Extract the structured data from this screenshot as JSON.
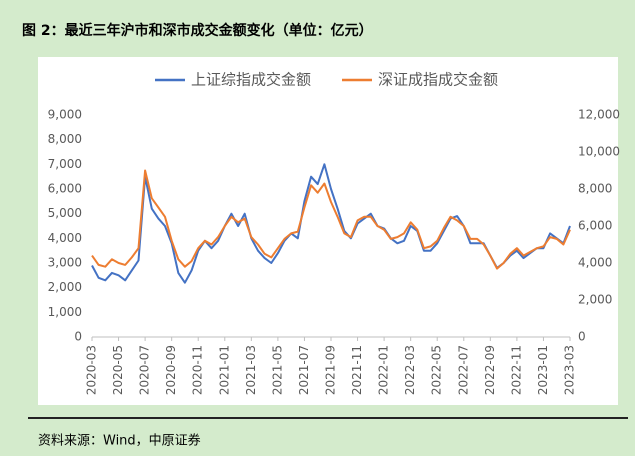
{
  "title": "图 2：最近三年沪市和深市成交金额变化（单位：亿元）",
  "source": "资料来源：Wind，中原证券",
  "chart_data": {
    "type": "line",
    "categories": [
      "2020-03",
      null,
      null,
      null,
      "2020-05",
      null,
      null,
      null,
      "2020-07",
      null,
      null,
      null,
      "2020-09",
      null,
      null,
      null,
      "2020-11",
      null,
      null,
      null,
      "2021-01",
      null,
      null,
      null,
      "2021-03",
      null,
      null,
      null,
      "2021-05",
      null,
      null,
      null,
      "2021-07",
      null,
      null,
      null,
      "2021-09",
      null,
      null,
      null,
      "2021-11",
      null,
      null,
      null,
      "2022-01",
      null,
      null,
      null,
      "2022-03",
      null,
      null,
      null,
      "2022-05",
      null,
      null,
      null,
      "2022-07",
      null,
      null,
      null,
      "2022-09",
      null,
      null,
      null,
      "2022-11",
      null,
      null,
      null,
      "2023-01",
      null,
      null,
      null,
      "2023-03"
    ],
    "series": [
      {
        "name": "上证综指成交金额",
        "color": "#4472c4",
        "axis": "y",
        "values": [
          2900,
          2400,
          2300,
          2600,
          2500,
          2300,
          2700,
          3100,
          6500,
          5200,
          4800,
          4500,
          3800,
          2600,
          2200,
          2700,
          3500,
          3900,
          3600,
          3900,
          4500,
          5000,
          4500,
          5000,
          4000,
          3500,
          3200,
          3000,
          3400,
          3900,
          4200,
          4000,
          5500,
          6500,
          6200,
          7000,
          6000,
          5200,
          4300,
          4000,
          4600,
          4800,
          5000,
          4500,
          4400,
          4000,
          3800,
          3900,
          4500,
          4300,
          3500,
          3500,
          3800,
          4300,
          4800,
          4900,
          4500,
          3800,
          3800,
          3800,
          3300,
          2800,
          3000,
          3300,
          3500,
          3200,
          3400,
          3600,
          3600,
          4200,
          4000,
          3800,
          4500
        ]
      },
      {
        "name": "深证成指成交金额",
        "color": "#ed7d31",
        "axis": "y2",
        "values": [
          4400,
          3900,
          3800,
          4200,
          4000,
          3900,
          4300,
          4800,
          9000,
          7500,
          7000,
          6500,
          5200,
          4200,
          3800,
          4100,
          4800,
          5200,
          5000,
          5400,
          6000,
          6500,
          6200,
          6400,
          5400,
          5000,
          4500,
          4300,
          4800,
          5300,
          5600,
          5700,
          7000,
          8200,
          7800,
          8300,
          7300,
          6500,
          5600,
          5400,
          6300,
          6500,
          6500,
          6000,
          5800,
          5300,
          5400,
          5600,
          6200,
          5800,
          4800,
          4900,
          5200,
          5900,
          6500,
          6300,
          6000,
          5300,
          5300,
          5000,
          4400,
          3700,
          4000,
          4500,
          4800,
          4400,
          4600,
          4800,
          4900,
          5400,
          5300,
          5000,
          5800
        ]
      }
    ],
    "ylim": [
      0,
      9000
    ],
    "yticks": [
      0,
      {
        "value": 1000,
        "label": "1,000"
      },
      {
        "value": 2000,
        "label": "2,000"
      },
      {
        "value": 3000,
        "label": "3,000"
      },
      {
        "value": 4000,
        "label": "4,000"
      },
      {
        "value": 5000,
        "label": "5,000"
      },
      {
        "value": 6000,
        "label": "6,000"
      },
      {
        "value": 7000,
        "label": "7,000"
      },
      {
        "value": 8000,
        "label": "8,000"
      },
      {
        "value": 9000,
        "label": "9,000"
      }
    ],
    "y2lim": [
      0,
      12000
    ],
    "y2ticks": [
      0,
      {
        "value": 2000,
        "label": "2,000"
      },
      {
        "value": 4000,
        "label": "4,000"
      },
      {
        "value": 6000,
        "label": "6,000"
      },
      {
        "value": 8000,
        "label": "8,000"
      },
      {
        "value": 10000,
        "label": "10,000"
      },
      {
        "value": 12000,
        "label": "12,000"
      }
    ],
    "legend": "top"
  }
}
